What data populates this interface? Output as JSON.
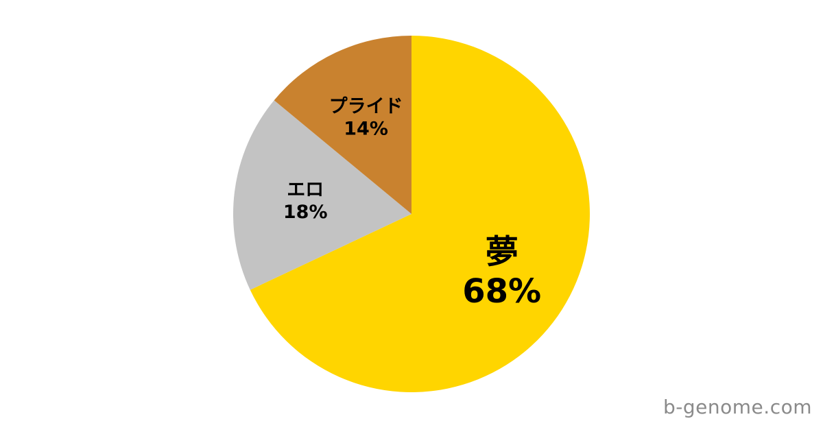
{
  "chart_data": {
    "type": "pie",
    "title": "",
    "start_angle_deg": 0,
    "direction": "clockwise",
    "legend": "none",
    "label_placement": "inside",
    "label_color": "#000000",
    "background": "#ffffff",
    "slices": [
      {
        "label": "夢",
        "value": 68,
        "color": "#FFD500",
        "emphasis": true
      },
      {
        "label": "エロ",
        "value": 18,
        "color": "#C3C3C3",
        "emphasis": false
      },
      {
        "label": "プライド",
        "value": 14,
        "color": "#C9822F",
        "emphasis": false
      }
    ],
    "value_suffix": "%"
  },
  "watermark": {
    "text": "b-genome.com",
    "color": "#8A8A8A"
  }
}
